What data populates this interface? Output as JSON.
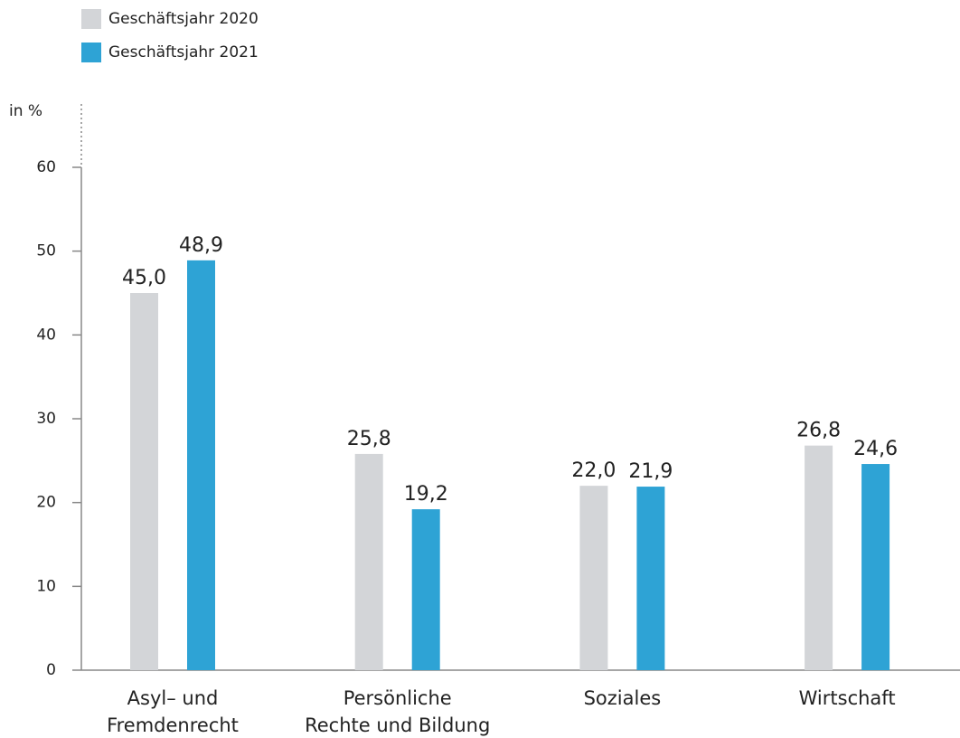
{
  "chart_data": {
    "type": "bar",
    "y_label": "in %",
    "categories": [
      "Asyl– und\nFremdenrecht",
      "Persönliche\nRechte und Bildung",
      "Soziales",
      "Wirtschaft"
    ],
    "series": [
      {
        "name": "Geschäftsjahr 2020",
        "color": "#d3d5d8",
        "values": [
          45.0,
          25.8,
          22.0,
          26.8
        ],
        "value_labels": [
          "45,0",
          "25,8",
          "22,0",
          "26,8"
        ]
      },
      {
        "name": "Geschäftsjahr 2021",
        "color": "#2ea3d5",
        "values": [
          48.9,
          19.2,
          21.9,
          24.6
        ],
        "value_labels": [
          "48,9",
          "19,2",
          "21,9",
          "24,6"
        ]
      }
    ],
    "ylim": [
      0,
      60
    ],
    "yticks": [
      0,
      10,
      20,
      30,
      40,
      50,
      60
    ],
    "grid": false,
    "legend": "top-left"
  }
}
